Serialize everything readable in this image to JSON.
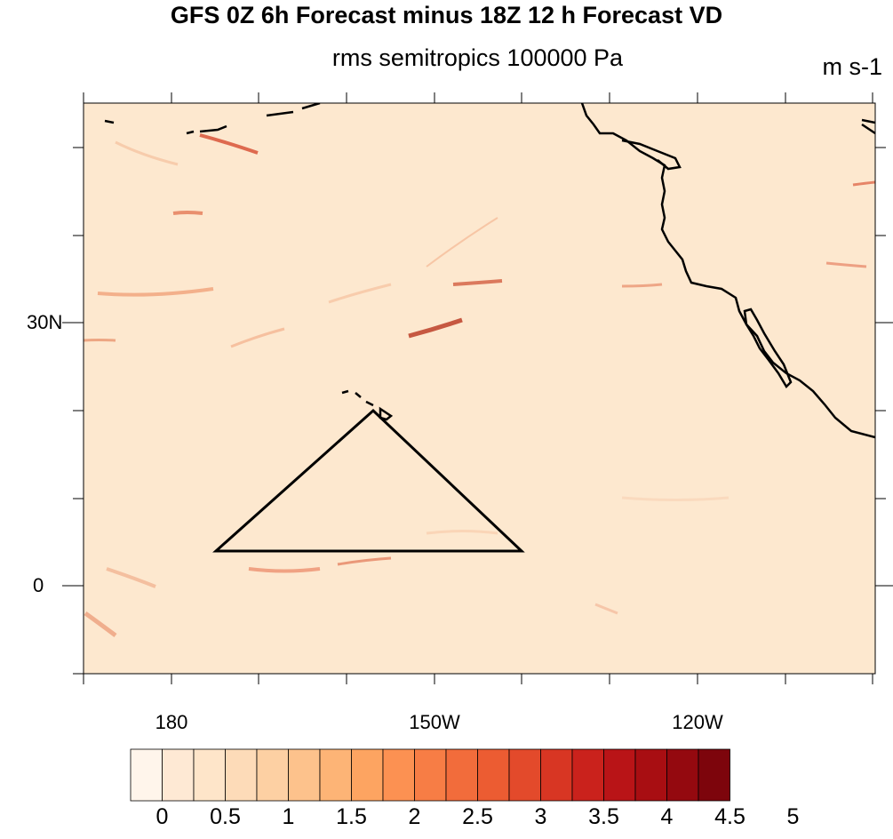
{
  "title": "GFS 0Z 6h Forecast minus 18Z 12 h Forecast VD",
  "subtitle": "rms semitropics 100000 Pa",
  "units": "m s-1",
  "axes": {
    "lat_labels": [
      "30N",
      "0"
    ],
    "lon_labels": [
      "180",
      "150W",
      "120W"
    ]
  },
  "colorbar": {
    "labels": [
      "0",
      "0.5",
      "1",
      "1.5",
      "2",
      "2.5",
      "3",
      "3.5",
      "4",
      "4.5",
      "5"
    ],
    "colors": [
      "#fff5eb",
      "#fee9d4",
      "#fee5c9",
      "#fddbb8",
      "#fdd0a3",
      "#fdc28c",
      "#fdb476",
      "#fda461",
      "#fc9152",
      "#f77d45",
      "#f26c3b",
      "#ec5c32",
      "#e34a2b",
      "#d83623",
      "#ca221c",
      "#b91417",
      "#a80e12",
      "#94090f",
      "#7d050c"
    ]
  },
  "map": {
    "background_color": "#fde8cf",
    "region": "semitropics",
    "domain_box_lon": [
      "170E",
      "110W"
    ],
    "domain_box_lat": [
      "10S",
      "55N"
    ]
  }
}
